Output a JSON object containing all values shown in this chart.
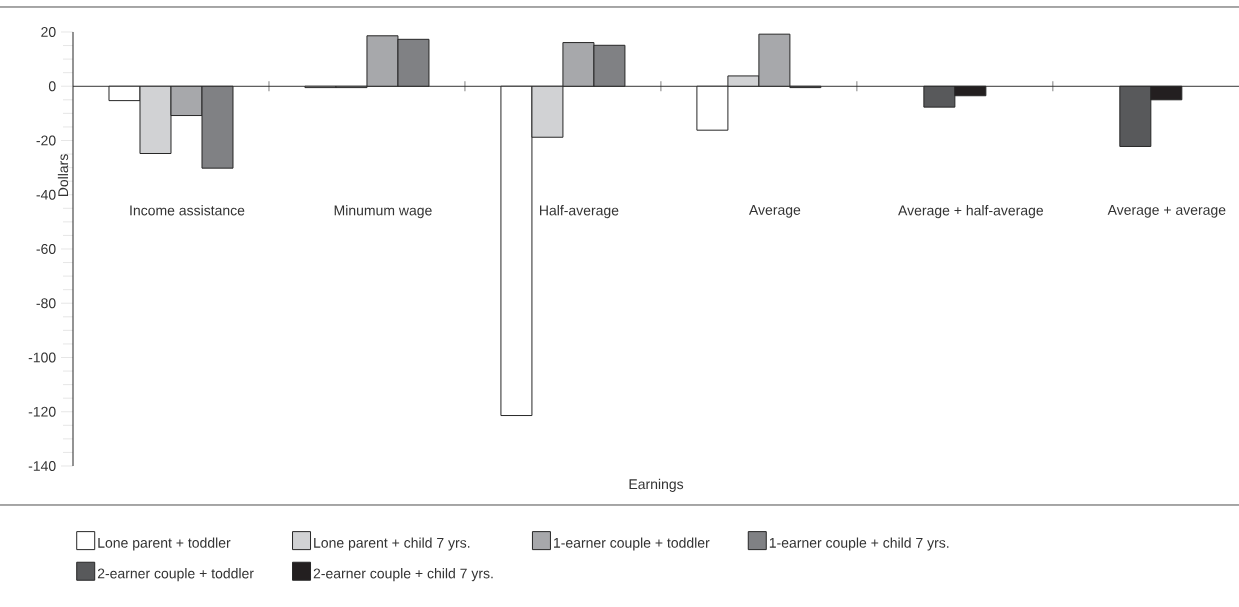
{
  "chart_data": {
    "type": "bar",
    "xlabel": "Earnings",
    "ylabel": "Dollars",
    "categories": [
      "Income assistance",
      "Minumum wage",
      "Half-average",
      "Average",
      "Average + half-average",
      "Average + average"
    ],
    "series": [
      {
        "name": "Lone parent + toddler",
        "color": "#ffffff",
        "values": [
          -5.3,
          -0.5,
          -121.4,
          -16.2,
          null,
          null
        ]
      },
      {
        "name": "Lone parent + child 7 yrs.",
        "color": "#d1d2d4",
        "values": [
          -24.8,
          -0.5,
          -18.8,
          3.8,
          null,
          null
        ]
      },
      {
        "name": "1-earner couple + toddler",
        "color": "#a7a8ab",
        "values": [
          -10.8,
          18.6,
          16.1,
          19.2,
          null,
          null
        ]
      },
      {
        "name": "1-earner couple + child 7 yrs.",
        "color": "#808184",
        "values": [
          -30.2,
          17.3,
          15.1,
          -0.5,
          null,
          null
        ]
      },
      {
        "name": "2-earner couple + toddler",
        "color": "#58595b",
        "values": [
          null,
          null,
          null,
          null,
          -7.7,
          -22.2
        ]
      },
      {
        "name": "2-earner couple + child 7 yrs.",
        "color": "#231f20",
        "values": [
          null,
          null,
          null,
          null,
          -3.5,
          -5.0
        ]
      }
    ],
    "ylim": [
      -140,
      20
    ],
    "yticks": [
      -140,
      -120,
      -100,
      -80,
      -60,
      -40,
      -20,
      0,
      20
    ],
    "legend": "bottom"
  }
}
